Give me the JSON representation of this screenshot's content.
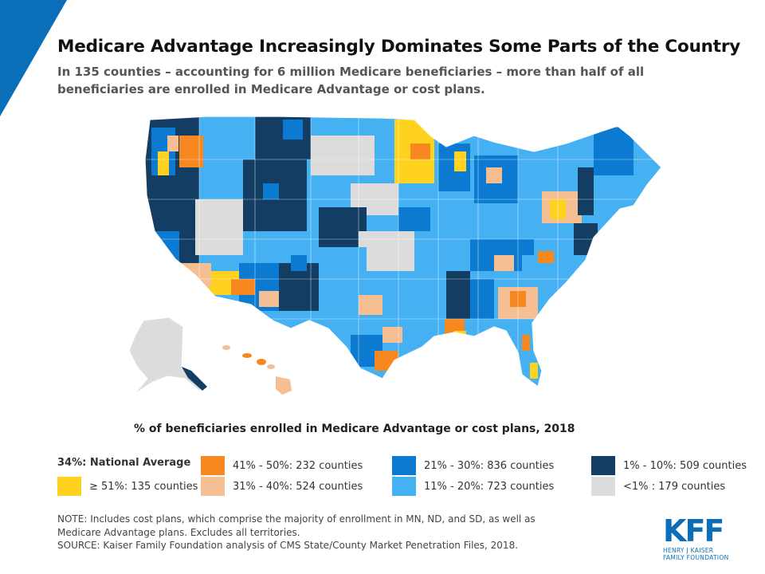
{
  "title": "Medicare Advantage Increasingly Dominates Some Parts of the Country",
  "subtitle": "In 135 counties – accounting for 6 million Medicare beneficiaries – more than half of all beneficiaries are enrolled in Medicare Advantage or cost plans.",
  "legend": {
    "title": "% of beneficiaries enrolled in Medicare Advantage or cost plans, 2018",
    "national_average": "34%: National Average",
    "items": [
      {
        "label": "≥ 51%: 135 counties",
        "color": "#ffd21f"
      },
      {
        "label": "41% - 50%: 232 counties",
        "color": "#f7881f"
      },
      {
        "label": "31% - 40%: 524 counties",
        "color": "#f6be93"
      },
      {
        "label": "21% - 30%: 836 counties",
        "color": "#0b7ad0"
      },
      {
        "label": "11% - 20%: 723 counties",
        "color": "#45b1f3"
      },
      {
        "label": "1% - 10%: 509 counties",
        "color": "#143d63"
      },
      {
        "label": "<1% : 179 counties",
        "color": "#dcdcdc"
      }
    ]
  },
  "note": "NOTE: Includes cost plans, which comprise the majority of enrollment in MN, ND, and SD, as well as Medicare Advantage plans. Excludes all territories.",
  "source": "SOURCE: Kaiser Family Foundation analysis of CMS State/County Market Penetration Files, 2018.",
  "logo": {
    "mark": "KFF",
    "line1": "HENRY J KAISER",
    "line2": "FAMILY FOUNDATION"
  },
  "colors": {
    "accent": "#0a6fb8"
  }
}
